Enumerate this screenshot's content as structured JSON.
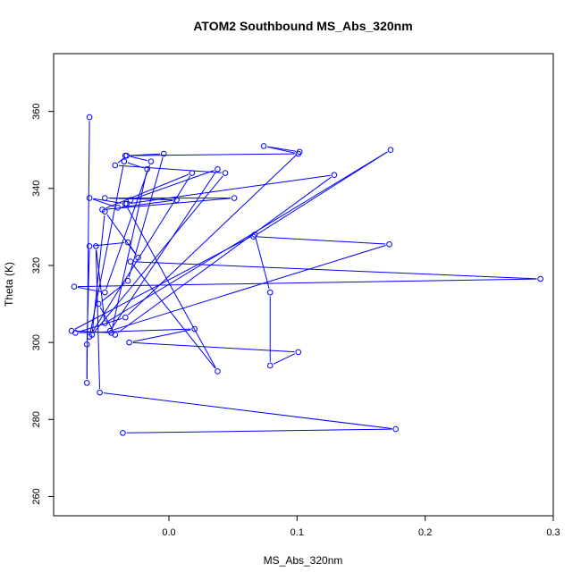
{
  "chart_data": {
    "type": "line",
    "title": "ATOM2 Southbound MS_Abs_320nm",
    "xlabel": "MS_Abs_320nm",
    "ylabel": "Theta (K)",
    "xlim": [
      -0.09,
      0.3
    ],
    "ylim": [
      255,
      375
    ],
    "xticks": [
      0.0,
      0.1,
      0.2,
      0.3
    ],
    "xtick_labels": [
      "0.0",
      "0.1",
      "0.2",
      "0.3"
    ],
    "yticks": [
      260,
      280,
      300,
      320,
      340,
      360
    ],
    "ytick_labels": [
      "260",
      "280",
      "300",
      "320",
      "340",
      "360"
    ],
    "grid": false,
    "color": "#0000ff",
    "series": [
      {
        "x": [
          -0.062,
          -0.064,
          -0.064,
          -0.062,
          -0.032,
          -0.024,
          -0.05,
          -0.06,
          0.044,
          -0.042,
          -0.033,
          -0.014,
          -0.05,
          -0.074,
          0.29,
          -0.03,
          0.038,
          -0.034,
          -0.062,
          -0.04,
          0.006,
          -0.05,
          0.051,
          -0.052,
          0.018,
          -0.062,
          -0.035,
          -0.017,
          -0.045,
          -0.076,
          0.067,
          0.079,
          0.079,
          0.101,
          -0.031,
          0.02,
          -0.073,
          -0.034,
          0.102,
          0.074,
          0.101,
          -0.034,
          -0.004,
          -0.032,
          -0.055,
          -0.042,
          0.129,
          -0.033,
          -0.03,
          0.038,
          -0.046,
          0.172,
          0.066,
          0.173,
          -0.05,
          -0.057,
          -0.054,
          0.177,
          -0.036
        ],
        "y": [
          358.5,
          289.5,
          299.5,
          325.0,
          326.0,
          322.0,
          334.0,
          302.0,
          344.0,
          346.0,
          348.5,
          347.0,
          313.0,
          314.5,
          316.5,
          321.0,
          292.5,
          336.0,
          337.5,
          335.0,
          337.0,
          337.5,
          337.5,
          334.5,
          344.0,
          301.5,
          347.0,
          345.0,
          302.5,
          303.0,
          328.0,
          313.0,
          294.0,
          297.5,
          300.0,
          303.5,
          302.5,
          306.5,
          349.5,
          351.0,
          349.0,
          348.5,
          349.0,
          316.0,
          310.0,
          302.0,
          343.5,
          336.0,
          337.0,
          345.0,
          303.0,
          325.5,
          327.5,
          350.0,
          305.0,
          325.0,
          287.0,
          277.5,
          276.5
        ]
      }
    ]
  }
}
